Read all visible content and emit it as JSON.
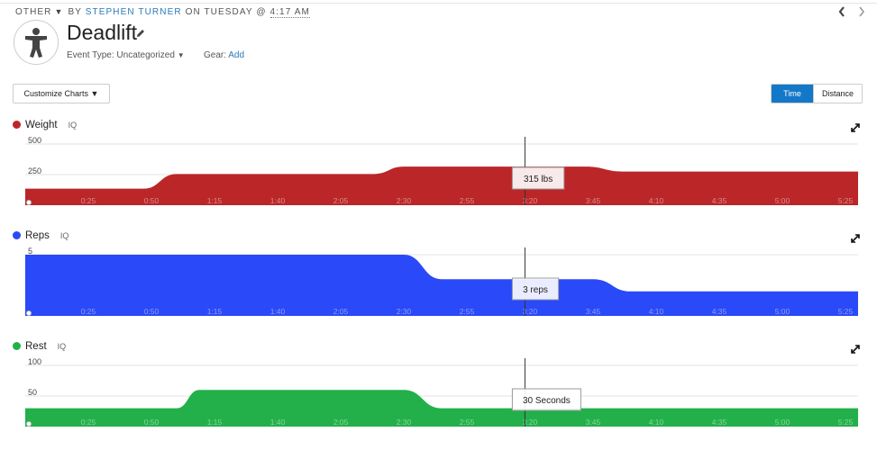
{
  "header": {
    "category": "OTHER",
    "by": "BY",
    "author": "STEPHEN TURNER",
    "on": "ON TUESDAY @",
    "time": "4:17 AM",
    "title": "Deadlift",
    "event_type_label": "Event Type:",
    "event_type_value": "Uncategorized",
    "gear_label": "Gear:",
    "gear_link": "Add",
    "icons": {
      "avatar": "person-icon",
      "edit": "pencil-icon",
      "prev": "chevron-left-icon",
      "next": "chevron-right-icon"
    }
  },
  "toolbar": {
    "customize_label": "Customize Charts ▼",
    "toggle": {
      "time_label": "Time",
      "distance_label": "Distance",
      "active": "Time"
    }
  },
  "x_ticks": [
    "0:25",
    "0:50",
    "1:15",
    "1:40",
    "2:05",
    "2:30",
    "2:55",
    "3:20",
    "3:45",
    "4:10",
    "4:35",
    "5:00",
    "5:25"
  ],
  "colors": {
    "weight": "#bb2628",
    "reps": "#2a49f8",
    "rest": "#23b04a",
    "accent": "#1478c8",
    "link": "#2a7ab8"
  },
  "chart_data": [
    {
      "type": "area",
      "key": "weight",
      "title": "Weight",
      "iq_label": "IQ",
      "yticks": [
        "500",
        "250"
      ],
      "ylim": [
        0,
        500
      ],
      "x": [
        0,
        0.7,
        0.78,
        1.0,
        1.5,
        2.3,
        2.5,
        3.0,
        3.7,
        3.95,
        5.5
      ],
      "values": [
        135,
        135,
        135,
        255,
        255,
        255,
        315,
        315,
        315,
        275,
        275
      ],
      "cursor_x": 3.3,
      "tooltip": "315 lbs"
    },
    {
      "type": "area",
      "key": "reps",
      "title": "Reps",
      "iq_label": "IQ",
      "yticks": [
        "5"
      ],
      "ylim": [
        0,
        5
      ],
      "x": [
        0,
        2.3,
        2.5,
        2.75,
        3.5,
        3.75,
        4.0,
        5.5
      ],
      "values": [
        5,
        5,
        5,
        3,
        3,
        3,
        2,
        2
      ],
      "cursor_x": 3.3,
      "tooltip": "3 reps"
    },
    {
      "type": "area",
      "key": "rest",
      "title": "Rest",
      "iq_label": "IQ",
      "yticks": [
        "100",
        "50"
      ],
      "ylim": [
        0,
        100
      ],
      "x": [
        0,
        0.9,
        1.0,
        1.15,
        2.3,
        2.5,
        2.75,
        3.1,
        5.5
      ],
      "values": [
        30,
        30,
        30,
        60,
        60,
        60,
        30,
        30,
        30
      ],
      "cursor_x": 3.3,
      "tooltip": "30 Seconds"
    }
  ]
}
